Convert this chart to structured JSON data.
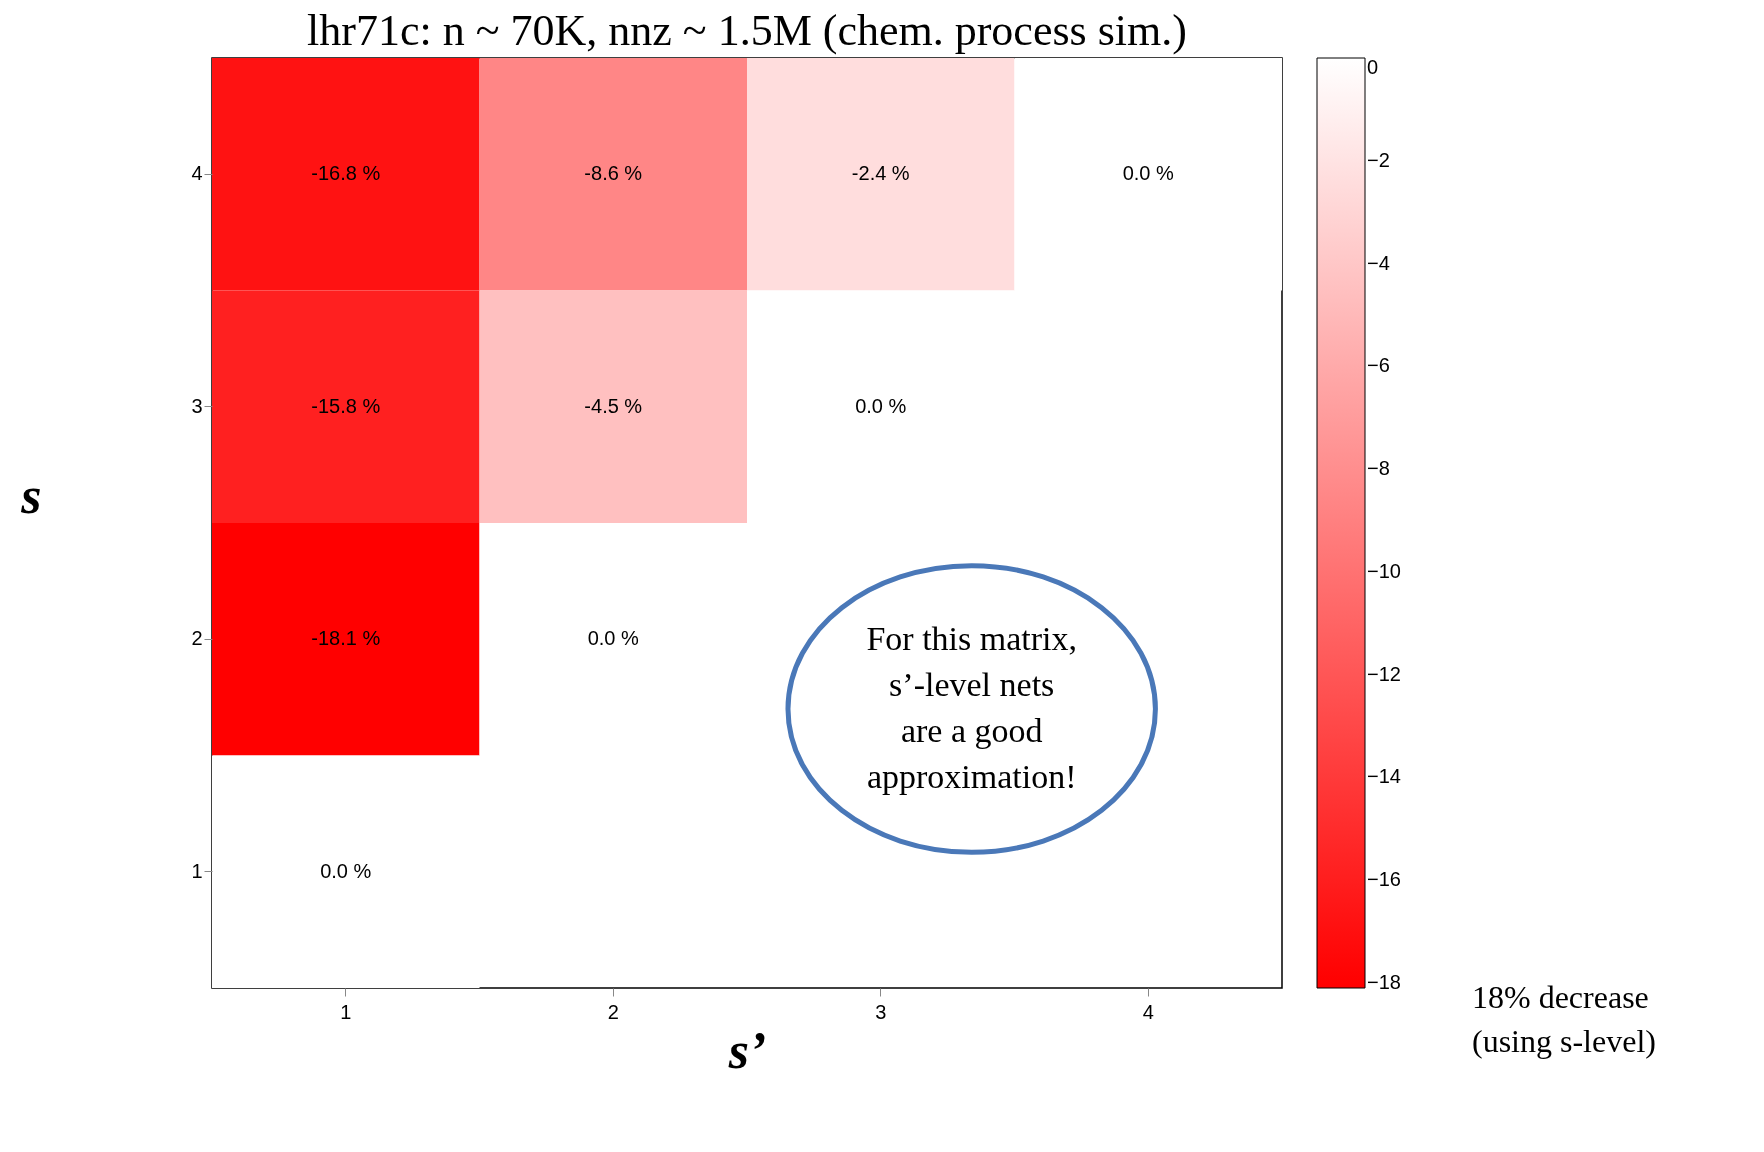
{
  "chart_data": {
    "type": "heatmap",
    "title": "lhr71c: n ~ 70K, nnz ~ 1.5M (chem. process sim.)",
    "xlabel": "s’",
    "ylabel": "s",
    "categories": [
      "1",
      "2",
      "3",
      "4"
    ],
    "y_categories": [
      "4",
      "3",
      "2",
      "1"
    ],
    "cells": [
      [
        -16.8,
        -8.6,
        -2.4,
        0.0
      ],
      [
        -15.8,
        -4.5,
        0.0,
        null
      ],
      [
        -18.1,
        0.0,
        null,
        null
      ],
      [
        0.0,
        null,
        null,
        null
      ]
    ],
    "cell_labels": [
      [
        "-16.8 %",
        "-8.6 %",
        "-2.4 %",
        "0.0 %"
      ],
      [
        "-15.8 %",
        "-4.5 %",
        "0.0 %",
        null
      ],
      [
        "-18.1 %",
        "0.0 %",
        null,
        null
      ],
      [
        "0.0 %",
        null,
        null,
        null
      ]
    ],
    "clim": [
      -18.1,
      0
    ],
    "cticks": [
      0,
      -2,
      -4,
      -6,
      -8,
      -10,
      -12,
      -14,
      -16,
      -18
    ],
    "annotations": [
      "For this matrix, s’-level nets are a good approximation!",
      "18% decrease (using s-level)"
    ]
  }
}
